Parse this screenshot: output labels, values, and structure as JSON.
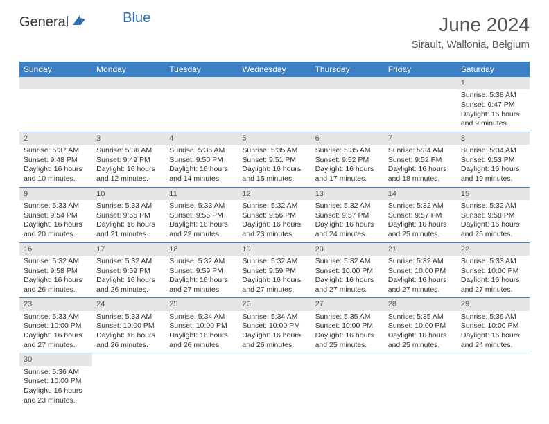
{
  "logo": {
    "text1": "General",
    "text2": "Blue",
    "color1": "#333333",
    "color2": "#2a6fb5"
  },
  "title": "June 2024",
  "subtitle": "Sirault, Wallonia, Belgium",
  "colors": {
    "header_bg": "#3a7fc4",
    "daynum_bg": "#e6e6e6",
    "row_border": "#3a7fc4"
  },
  "weekdays": [
    "Sunday",
    "Monday",
    "Tuesday",
    "Wednesday",
    "Thursday",
    "Friday",
    "Saturday"
  ],
  "weeks": [
    [
      null,
      null,
      null,
      null,
      null,
      null,
      {
        "n": "1",
        "sunrise": "5:38 AM",
        "sunset": "9:47 PM",
        "dl": "16 hours and 9 minutes."
      }
    ],
    [
      {
        "n": "2",
        "sunrise": "5:37 AM",
        "sunset": "9:48 PM",
        "dl": "16 hours and 10 minutes."
      },
      {
        "n": "3",
        "sunrise": "5:36 AM",
        "sunset": "9:49 PM",
        "dl": "16 hours and 12 minutes."
      },
      {
        "n": "4",
        "sunrise": "5:36 AM",
        "sunset": "9:50 PM",
        "dl": "16 hours and 14 minutes."
      },
      {
        "n": "5",
        "sunrise": "5:35 AM",
        "sunset": "9:51 PM",
        "dl": "16 hours and 15 minutes."
      },
      {
        "n": "6",
        "sunrise": "5:35 AM",
        "sunset": "9:52 PM",
        "dl": "16 hours and 17 minutes."
      },
      {
        "n": "7",
        "sunrise": "5:34 AM",
        "sunset": "9:52 PM",
        "dl": "16 hours and 18 minutes."
      },
      {
        "n": "8",
        "sunrise": "5:34 AM",
        "sunset": "9:53 PM",
        "dl": "16 hours and 19 minutes."
      }
    ],
    [
      {
        "n": "9",
        "sunrise": "5:33 AM",
        "sunset": "9:54 PM",
        "dl": "16 hours and 20 minutes."
      },
      {
        "n": "10",
        "sunrise": "5:33 AM",
        "sunset": "9:55 PM",
        "dl": "16 hours and 21 minutes."
      },
      {
        "n": "11",
        "sunrise": "5:33 AM",
        "sunset": "9:55 PM",
        "dl": "16 hours and 22 minutes."
      },
      {
        "n": "12",
        "sunrise": "5:32 AM",
        "sunset": "9:56 PM",
        "dl": "16 hours and 23 minutes."
      },
      {
        "n": "13",
        "sunrise": "5:32 AM",
        "sunset": "9:57 PM",
        "dl": "16 hours and 24 minutes."
      },
      {
        "n": "14",
        "sunrise": "5:32 AM",
        "sunset": "9:57 PM",
        "dl": "16 hours and 25 minutes."
      },
      {
        "n": "15",
        "sunrise": "5:32 AM",
        "sunset": "9:58 PM",
        "dl": "16 hours and 25 minutes."
      }
    ],
    [
      {
        "n": "16",
        "sunrise": "5:32 AM",
        "sunset": "9:58 PM",
        "dl": "16 hours and 26 minutes."
      },
      {
        "n": "17",
        "sunrise": "5:32 AM",
        "sunset": "9:59 PM",
        "dl": "16 hours and 26 minutes."
      },
      {
        "n": "18",
        "sunrise": "5:32 AM",
        "sunset": "9:59 PM",
        "dl": "16 hours and 27 minutes."
      },
      {
        "n": "19",
        "sunrise": "5:32 AM",
        "sunset": "9:59 PM",
        "dl": "16 hours and 27 minutes."
      },
      {
        "n": "20",
        "sunrise": "5:32 AM",
        "sunset": "10:00 PM",
        "dl": "16 hours and 27 minutes."
      },
      {
        "n": "21",
        "sunrise": "5:32 AM",
        "sunset": "10:00 PM",
        "dl": "16 hours and 27 minutes."
      },
      {
        "n": "22",
        "sunrise": "5:33 AM",
        "sunset": "10:00 PM",
        "dl": "16 hours and 27 minutes."
      }
    ],
    [
      {
        "n": "23",
        "sunrise": "5:33 AM",
        "sunset": "10:00 PM",
        "dl": "16 hours and 27 minutes."
      },
      {
        "n": "24",
        "sunrise": "5:33 AM",
        "sunset": "10:00 PM",
        "dl": "16 hours and 26 minutes."
      },
      {
        "n": "25",
        "sunrise": "5:34 AM",
        "sunset": "10:00 PM",
        "dl": "16 hours and 26 minutes."
      },
      {
        "n": "26",
        "sunrise": "5:34 AM",
        "sunset": "10:00 PM",
        "dl": "16 hours and 26 minutes."
      },
      {
        "n": "27",
        "sunrise": "5:35 AM",
        "sunset": "10:00 PM",
        "dl": "16 hours and 25 minutes."
      },
      {
        "n": "28",
        "sunrise": "5:35 AM",
        "sunset": "10:00 PM",
        "dl": "16 hours and 25 minutes."
      },
      {
        "n": "29",
        "sunrise": "5:36 AM",
        "sunset": "10:00 PM",
        "dl": "16 hours and 24 minutes."
      }
    ],
    [
      {
        "n": "30",
        "sunrise": "5:36 AM",
        "sunset": "10:00 PM",
        "dl": "16 hours and 23 minutes."
      },
      null,
      null,
      null,
      null,
      null,
      null
    ]
  ],
  "labels": {
    "sunrise": "Sunrise: ",
    "sunset": "Sunset: ",
    "daylight": "Daylight: "
  }
}
